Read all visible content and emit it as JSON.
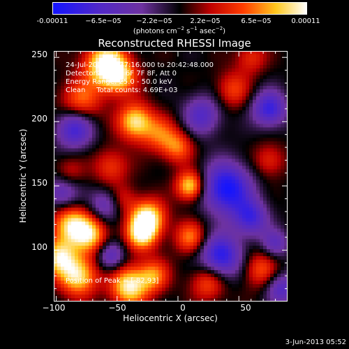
{
  "colorbar": {
    "ticks": [
      "-0.00011",
      "−6.5e−05",
      "−2.2e−05",
      "2.2e−05",
      "6.5e−05",
      "0.00011"
    ],
    "unit_main": "(photons cm",
    "unit_sup1": "−2",
    "unit_mid": " s",
    "unit_sup2": "−1",
    "unit_mid2": " asec",
    "unit_sup3": "−2",
    "unit_end": ")"
  },
  "chart_data": {
    "type": "heatmap",
    "title": "Reconstructed RHESSI Image",
    "xlabel": "Heliocentric X (arcsec)",
    "ylabel": "Heliocentric Y (arcsec)",
    "xlim": [
      -102,
      90
    ],
    "ylim": [
      60,
      255
    ],
    "x_ticks": [
      "−100",
      "−50",
      "0",
      "50"
    ],
    "y_ticks": [
      "250",
      "200",
      "150",
      "100"
    ],
    "color_range": [
      -0.00011,
      0.00011
    ],
    "blobs": [
      {
        "x": -60,
        "y": 245,
        "v": 1.0,
        "s": 12
      },
      {
        "x": -48,
        "y": 235,
        "v": 0.7,
        "s": 10
      },
      {
        "x": -35,
        "y": 200,
        "v": 0.9,
        "s": 10
      },
      {
        "x": -80,
        "y": 215,
        "v": 0.6,
        "s": 12
      },
      {
        "x": -15,
        "y": 190,
        "v": 0.5,
        "s": 10
      },
      {
        "x": 0,
        "y": 180,
        "v": 0.55,
        "s": 9
      },
      {
        "x": 45,
        "y": 225,
        "v": 0.45,
        "s": 10
      },
      {
        "x": 60,
        "y": 250,
        "v": 0.4,
        "s": 9
      },
      {
        "x": 75,
        "y": 170,
        "v": 0.4,
        "s": 9
      },
      {
        "x": 10,
        "y": 150,
        "v": 0.9,
        "s": 8
      },
      {
        "x": -25,
        "y": 125,
        "v": 1.0,
        "s": 10
      },
      {
        "x": -30,
        "y": 112,
        "v": 0.8,
        "s": 9
      },
      {
        "x": -88,
        "y": 120,
        "v": 0.85,
        "s": 11
      },
      {
        "x": -72,
        "y": 112,
        "v": 0.75,
        "s": 10
      },
      {
        "x": -98,
        "y": 95,
        "v": 0.8,
        "s": 10
      },
      {
        "x": -82,
        "y": 80,
        "v": 0.9,
        "s": 11
      },
      {
        "x": -40,
        "y": 72,
        "v": 0.95,
        "s": 11
      },
      {
        "x": -20,
        "y": 80,
        "v": 0.6,
        "s": 9
      },
      {
        "x": 10,
        "y": 110,
        "v": 0.6,
        "s": 9
      },
      {
        "x": 25,
        "y": 75,
        "v": 0.55,
        "s": 10
      },
      {
        "x": 68,
        "y": 85,
        "v": 0.5,
        "s": 10
      },
      {
        "x": -55,
        "y": 165,
        "v": 0.45,
        "s": 10
      },
      {
        "x": -90,
        "y": 160,
        "v": 0.35,
        "s": 9
      },
      {
        "x": -45,
        "y": 140,
        "v": 0.3,
        "s": 8
      },
      {
        "x": 40,
        "y": 148,
        "v": -1.0,
        "s": 14
      },
      {
        "x": 35,
        "y": 95,
        "v": -0.9,
        "s": 12
      },
      {
        "x": 75,
        "y": 210,
        "v": -0.8,
        "s": 10
      },
      {
        "x": -85,
        "y": 195,
        "v": -0.8,
        "s": 11
      },
      {
        "x": -95,
        "y": 145,
        "v": -0.6,
        "s": 10
      },
      {
        "x": -55,
        "y": 95,
        "v": -0.6,
        "s": 8
      },
      {
        "x": 60,
        "y": 125,
        "v": -0.7,
        "s": 10
      },
      {
        "x": 85,
        "y": 70,
        "v": -0.6,
        "s": 9
      },
      {
        "x": 20,
        "y": 205,
        "v": -0.6,
        "s": 11
      },
      {
        "x": -60,
        "y": 135,
        "v": -0.5,
        "s": 9
      },
      {
        "x": 80,
        "y": 105,
        "v": -0.5,
        "s": 8
      }
    ]
  },
  "info": {
    "line1": "24-Jul-2003 20:37:16.000 to 20:42:48.000",
    "line2": "Detectors: 4F 5F 6F 7F 8F, Att 0",
    "line3": "Energy Range: 25.0 - 50.0 keV",
    "line4": "Clean     Total counts: 4.69E+03",
    "peak": "Position of Peak = [-82,93]"
  },
  "footer": {
    "date": "3-Jun-2013 05:52"
  }
}
